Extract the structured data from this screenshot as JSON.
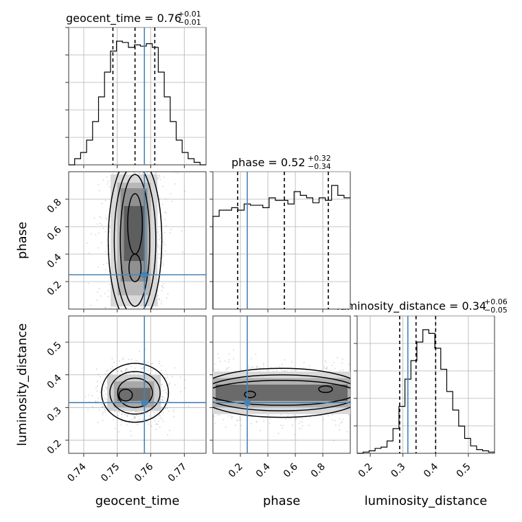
{
  "chart_data": {
    "type": "corner",
    "parameters": [
      "geocent_time",
      "phase",
      "luminosity_distance"
    ],
    "titles": [
      {
        "name": "geocent_time",
        "median": "0.76",
        "plus": "+0.01",
        "minus": "−0.01"
      },
      {
        "name": "phase",
        "median": "0.52",
        "plus": "+0.32",
        "minus": "−0.34"
      },
      {
        "name": "luminosity_distance",
        "median": "0.34",
        "plus": "+0.06",
        "minus": "−0.05"
      }
    ],
    "axes": {
      "geocent_time": {
        "range": [
          0.7355,
          0.7765
        ],
        "ticks": [
          0.74,
          0.75,
          0.76,
          0.77
        ],
        "tick_labels": [
          "0.74",
          "0.75",
          "0.76",
          "0.77"
        ],
        "quantiles": [
          0.7487,
          0.7553,
          0.7612
        ],
        "truth": 0.7581
      },
      "phase": {
        "range": [
          0.0,
          1.0
        ],
        "ticks": [
          0.2,
          0.4,
          0.6,
          0.8
        ],
        "tick_labels": [
          "0.2",
          "0.4",
          "0.6",
          "0.8"
        ],
        "quantiles": [
          0.18,
          0.52,
          0.84
        ],
        "truth": 0.25
      },
      "luminosity_distance": {
        "range": [
          0.16,
          0.58
        ],
        "ticks": [
          0.2,
          0.3,
          0.4,
          0.5
        ],
        "tick_labels": [
          "0.2",
          "0.3",
          "0.4",
          "0.5"
        ],
        "quantiles": [
          0.29,
          0.34,
          0.4
        ],
        "truth": 0.315
      }
    },
    "histograms": {
      "geocent_time": {
        "edges_range": [
          0.7355,
          0.7765
        ],
        "counts": [
          0,
          0.05,
          0.1,
          0.2,
          0.35,
          0.55,
          0.75,
          0.92,
          1.0,
          0.99,
          0.95,
          0.97,
          0.96,
          0.98,
          0.95,
          0.75,
          0.55,
          0.35,
          0.2,
          0.1,
          0.05,
          0.02,
          0.0
        ]
      },
      "phase": {
        "edges_range": [
          0.0,
          1.0
        ],
        "counts": [
          0.75,
          0.8,
          0.8,
          0.82,
          0.8,
          0.85,
          0.84,
          0.84,
          0.82,
          0.9,
          0.88,
          0.88,
          0.85,
          0.95,
          0.92,
          0.9,
          0.86,
          0.9,
          0.88,
          1.0,
          0.92,
          0.9
        ]
      },
      "luminosity_distance": {
        "edges_range": [
          0.16,
          0.58
        ],
        "counts": [
          0.0,
          0.01,
          0.02,
          0.04,
          0.05,
          0.1,
          0.2,
          0.38,
          0.6,
          0.75,
          0.9,
          1.0,
          0.97,
          0.85,
          0.68,
          0.5,
          0.35,
          0.22,
          0.12,
          0.06,
          0.03,
          0.02,
          0.01
        ]
      }
    },
    "joint_truth": {
      "geocent_time": 0.7581,
      "phase": 0.25,
      "luminosity_distance": 0.315
    },
    "grid": true
  }
}
